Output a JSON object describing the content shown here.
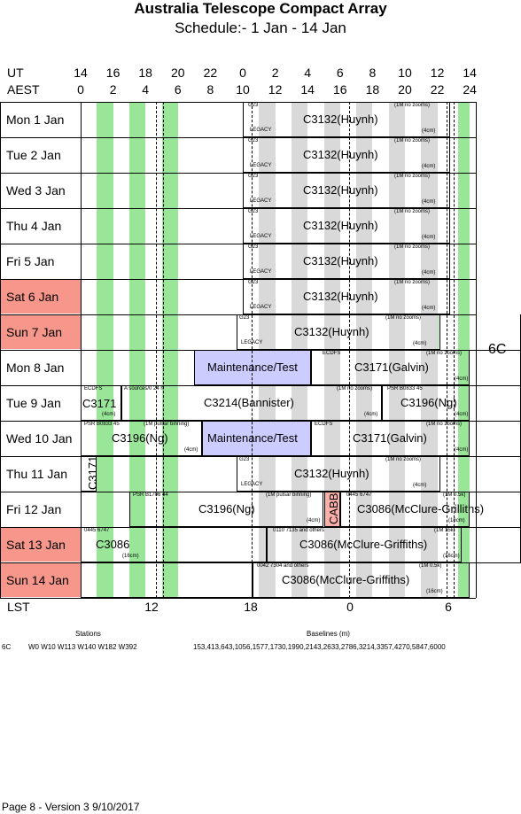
{
  "title": "Australia Telescope Compact Array",
  "subtitle": "Schedule:- 1  Jan - 14 Jan",
  "ut_label": "UT",
  "aest_label": "AEST",
  "lst_label": "LST",
  "ut_ticks": [
    "14",
    "16",
    "18",
    "20",
    "22",
    "0",
    "2",
    "4",
    "6",
    "8",
    "10",
    "12",
    "14"
  ],
  "aest_ticks": [
    "0",
    "2",
    "4",
    "6",
    "8",
    "10",
    "12",
    "14",
    "16",
    "18",
    "20",
    "22",
    "24"
  ],
  "lst_ticks": [
    "12",
    "18",
    "0",
    "6"
  ],
  "array_config": "6C",
  "days": [
    {
      "label": "Mon    1  Jan",
      "weekend": false
    },
    {
      "label": "Tue    2  Jan",
      "weekend": false
    },
    {
      "label": "Wed   3  Jan",
      "weekend": false
    },
    {
      "label": "Thu    4  Jan",
      "weekend": false
    },
    {
      "label": "Fri     5  Jan",
      "weekend": false
    },
    {
      "label": "Sat    6  Jan",
      "weekend": true
    },
    {
      "label": "Sun    7  Jan",
      "weekend": true
    },
    {
      "label": "Mon    8  Jan",
      "weekend": false
    },
    {
      "label": "Tue    9  Jan",
      "weekend": false
    },
    {
      "label": "Wed  10  Jan",
      "weekend": false
    },
    {
      "label": "Thu   11  Jan",
      "weekend": false
    },
    {
      "label": "Fri    12  Jan",
      "weekend": false
    },
    {
      "label": "Sat   13  Jan",
      "weekend": true
    },
    {
      "label": "Sun   14  Jan",
      "weekend": true
    }
  ],
  "blocks_text": {
    "c3132": "C3132(Huynh)",
    "g23": "G23",
    "legacy": "LEGACY",
    "note_1m_nozooms": "(1M no zooms)",
    "note_4cm": "(4cm)",
    "maintenance": "Maintenance/Test",
    "ecdfs": "ECDFS",
    "c3171_galvin": "C3171(Galvin)",
    "c3171": "C3171",
    "a_sources": "A  sources/0 24 h",
    "c3214": "C3214(Bannister)",
    "psr_b0833": "PSR B0833 45",
    "c3196": "C3196(Ng)",
    "note_1m_pulsar": "(1M pulsar binning)",
    "psr_b1706": "PSR B1706 44",
    "cabb": "CABB",
    "src_0445": "0445 6747",
    "c3086_mcg": "C3086(McClure-Grilliths)",
    "note_1m_05k": "(1M 0.5k)",
    "note_16cm": "(16cm)",
    "c3086": "C3086",
    "src_0110": "0110 7135 and others",
    "c3086_mcg2": "C3086(McClure-Griffiths)",
    "src_0042": "0042 7304 and others",
    "note_1m_15k": "(1M 15k)"
  },
  "stations_header": "Stations",
  "baselines_header": "Baselines (m)",
  "config_row": {
    "config": "6C",
    "stations": "W0 W10 W113 W140 W182 W392",
    "baselines": "153,413,643,1056,1577,1730,1990,2143,2633,2786,3214,3357,4270,5847,6000"
  },
  "footer": "Page 8 - Version 3  9/10/2017",
  "colors": {
    "green": "#99e699",
    "grey": "#d9d9d9",
    "weekend": "#f7968a",
    "maint": "#ccccff",
    "cabb": "#ffb0a8"
  }
}
